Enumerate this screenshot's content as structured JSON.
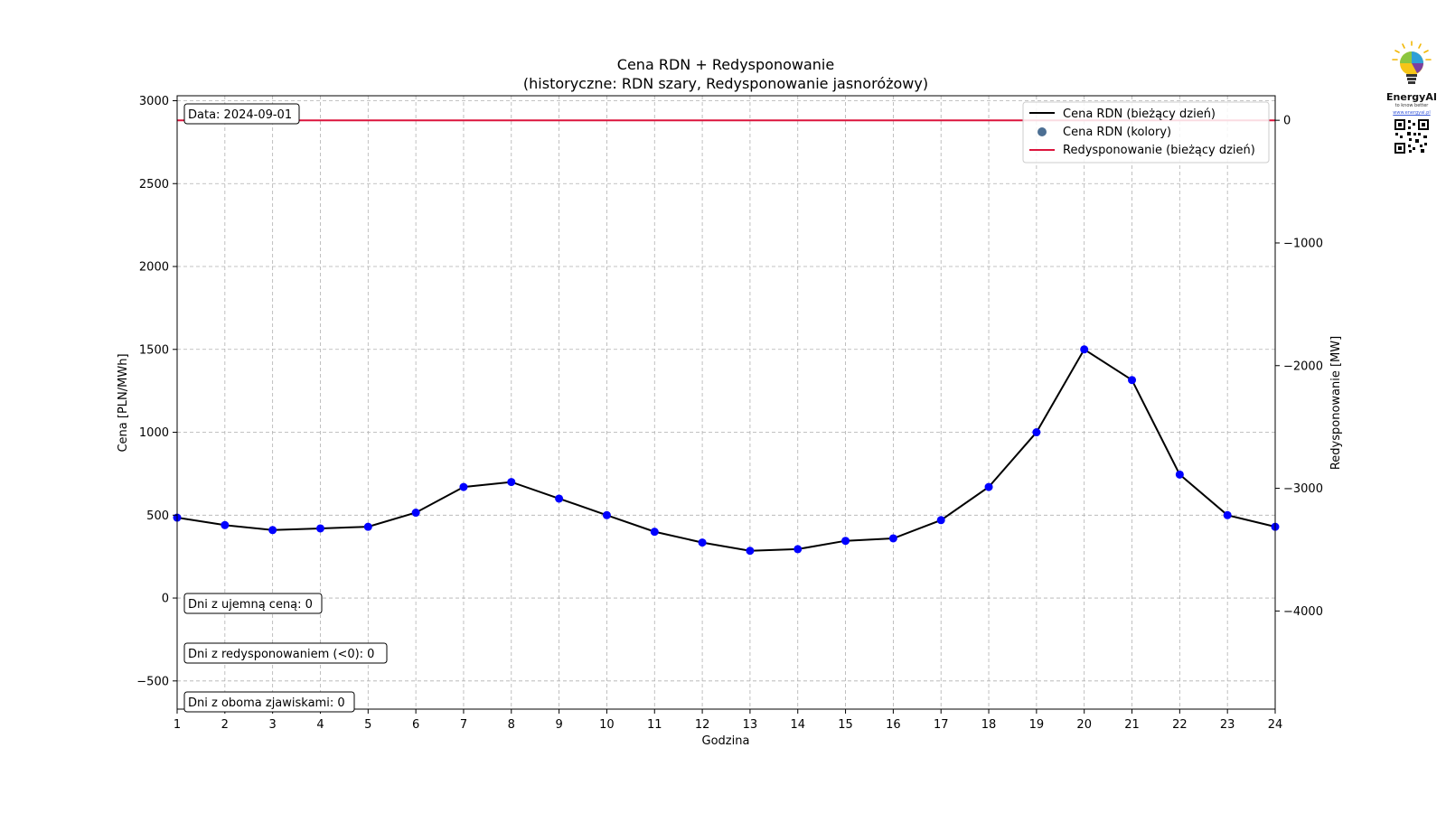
{
  "chart_data": {
    "type": "line",
    "title": "Cena RDN + Redysponowanie",
    "subtitle": "(historyczne: RDN szary, Redysponowanie jasnoróżowy)",
    "xlabel": "Godzina",
    "ylabel": "Cena [PLN/MWh]",
    "y2label": "Redysponowanie [MW]",
    "xlim": [
      1,
      24
    ],
    "ylim": [
      -670,
      3030
    ],
    "y2lim": [
      -4800,
      200
    ],
    "x_ticks": [
      "1",
      "2",
      "3",
      "4",
      "5",
      "6",
      "7",
      "8",
      "9",
      "10",
      "11",
      "12",
      "13",
      "14",
      "15",
      "16",
      "17",
      "18",
      "19",
      "20",
      "21",
      "22",
      "23",
      "24"
    ],
    "y_ticks": [
      {
        "value": -500,
        "label": "−500"
      },
      {
        "value": 0,
        "label": "0"
      },
      {
        "value": 500,
        "label": "500"
      },
      {
        "value": 1000,
        "label": "1000"
      },
      {
        "value": 1500,
        "label": "1500"
      },
      {
        "value": 2000,
        "label": "2000"
      },
      {
        "value": 2500,
        "label": "2500"
      },
      {
        "value": 3000,
        "label": "3000"
      }
    ],
    "y2_ticks": [
      {
        "value": 0,
        "label": "0"
      },
      {
        "value": -1000,
        "label": "−1000"
      },
      {
        "value": -2000,
        "label": "−2000"
      },
      {
        "value": -3000,
        "label": "−3000"
      },
      {
        "value": -4000,
        "label": "−4000"
      }
    ],
    "grid": true,
    "legend_position": "top-right",
    "series": [
      {
        "name": "Cena RDN (bieżący dzień)",
        "axis": "left",
        "color": "#000000",
        "marker_color": "#0000ff",
        "x": [
          1,
          2,
          3,
          4,
          5,
          6,
          7,
          8,
          9,
          10,
          11,
          12,
          13,
          14,
          15,
          16,
          17,
          18,
          19,
          20,
          21,
          22,
          23,
          24
        ],
        "values": [
          485,
          440,
          410,
          420,
          430,
          515,
          670,
          700,
          600,
          500,
          400,
          335,
          285,
          295,
          345,
          360,
          470,
          670,
          1000,
          1500,
          1315,
          745,
          500,
          430
        ]
      },
      {
        "name": "Redysponowanie (bieżący dzień)",
        "axis": "right",
        "color": "#dc143c",
        "x": [
          1,
          24
        ],
        "values": [
          0,
          0
        ]
      }
    ],
    "legend": [
      {
        "label": "Cena RDN (bieżący dzień)",
        "kind": "line",
        "color": "#000000"
      },
      {
        "label": "Cena RDN (kolory)",
        "kind": "dot",
        "color": "#4c6f93"
      },
      {
        "label": "Redysponowanie (bieżący dzień)",
        "kind": "line",
        "color": "#dc143c"
      }
    ],
    "annotations": {
      "date": "Data: 2024-09-01",
      "negative_price_days": "Dni z ujemną ceną: 0",
      "redispatch_days": "Dni z redysponowaniem (<0): 0",
      "both_days": "Dni z oboma zjawiskami: 0"
    }
  },
  "logo": {
    "brand": "EnergyAI",
    "tagline": "to know better",
    "url": "www.energyai.pl"
  }
}
